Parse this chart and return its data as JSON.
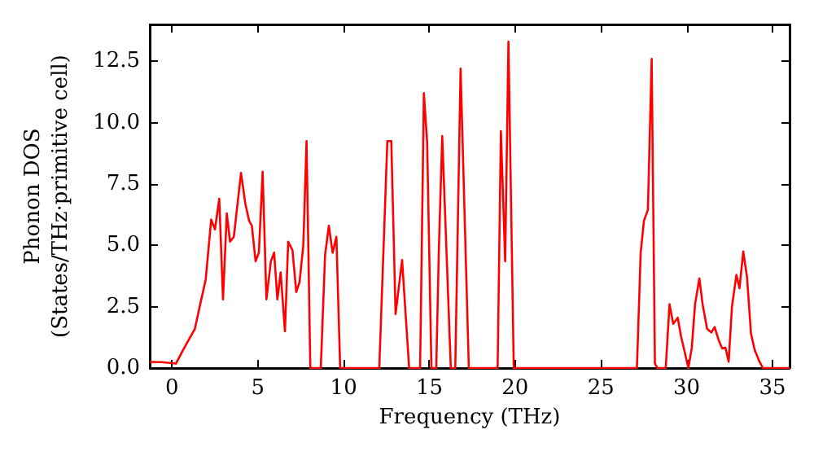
{
  "chart_data": {
    "type": "line",
    "xlabel": "Frequency (THz)",
    "ylabel": "Phonon DOS\n(States/THz·primitive cell)",
    "series": [
      {
        "color": "#ff0000",
        "x": [
          -1.3,
          -0.57,
          0.22,
          0.54,
          0.85,
          1.33,
          1.64,
          1.96,
          2.28,
          2.5,
          2.75,
          2.97,
          3.19,
          3.38,
          3.6,
          4.02,
          4.27,
          4.49,
          4.65,
          4.87,
          5.06,
          5.28,
          5.5,
          5.76,
          5.95,
          6.14,
          6.33,
          6.58,
          6.77,
          7.02,
          7.24,
          7.43,
          7.65,
          7.84,
          8.06,
          8.67,
          8.92,
          9.14,
          9.36,
          9.58,
          9.8,
          12.08,
          12.55,
          12.78,
          13.03,
          13.41,
          13.82,
          14.46,
          14.68,
          14.87,
          15.12,
          15.4,
          15.56,
          15.75,
          16.25,
          16.51,
          16.82,
          17.3,
          18.98,
          19.17,
          19.42,
          19.61,
          19.92,
          27.1,
          27.32,
          27.51,
          27.74,
          27.96,
          28.15,
          28.3,
          28.78,
          29.0,
          29.22,
          29.48,
          29.67,
          29.86,
          30.1,
          30.3,
          30.49,
          30.74,
          30.93,
          31.19,
          31.44,
          31.63,
          31.85,
          32.07,
          32.26,
          32.45,
          32.64,
          32.9,
          33.08,
          33.3,
          33.52,
          33.75,
          33.97,
          34.22,
          34.44,
          36
        ],
        "values": [
          0.25,
          0.24,
          0.18,
          0.6,
          1.0,
          1.6,
          2.6,
          3.6,
          6.05,
          5.65,
          6.9,
          2.8,
          6.3,
          5.15,
          5.35,
          7.95,
          6.7,
          6.0,
          5.8,
          4.35,
          4.7,
          8.0,
          2.8,
          4.35,
          4.7,
          2.8,
          3.9,
          1.5,
          5.15,
          4.8,
          3.1,
          3.5,
          5.0,
          9.25,
          0,
          0,
          4.6,
          5.8,
          4.7,
          5.35,
          0,
          0,
          9.25,
          9.25,
          2.2,
          4.4,
          0,
          0,
          11.2,
          9.2,
          0,
          0,
          5.0,
          9.45,
          0,
          0,
          12.2,
          0,
          0,
          9.65,
          4.35,
          13.3,
          0,
          0,
          4.7,
          6.0,
          6.45,
          12.6,
          0.18,
          0,
          0,
          2.6,
          1.8,
          2.05,
          1.3,
          0.73,
          0,
          0.84,
          2.6,
          3.65,
          2.6,
          1.6,
          1.45,
          1.67,
          1.17,
          0.8,
          0.83,
          0.26,
          2.5,
          3.8,
          3.25,
          4.75,
          3.7,
          1.4,
          0.73,
          0.3,
          0,
          0
        ]
      }
    ],
    "xlim": [
      -1.3,
      36
    ],
    "xticks": [
      0,
      5,
      10,
      15,
      20,
      25,
      30,
      35
    ],
    "ylim": [
      0,
      14
    ],
    "yticks": [
      {
        "value": 0,
        "label": "0.0"
      },
      {
        "value": 2.5,
        "label": "2.5"
      },
      {
        "value": 5,
        "label": "5.0"
      },
      {
        "value": 7.5,
        "label": "7.5"
      },
      {
        "value": 10,
        "label": "10.0"
      },
      {
        "value": 12.5,
        "label": "12.5"
      }
    ]
  }
}
